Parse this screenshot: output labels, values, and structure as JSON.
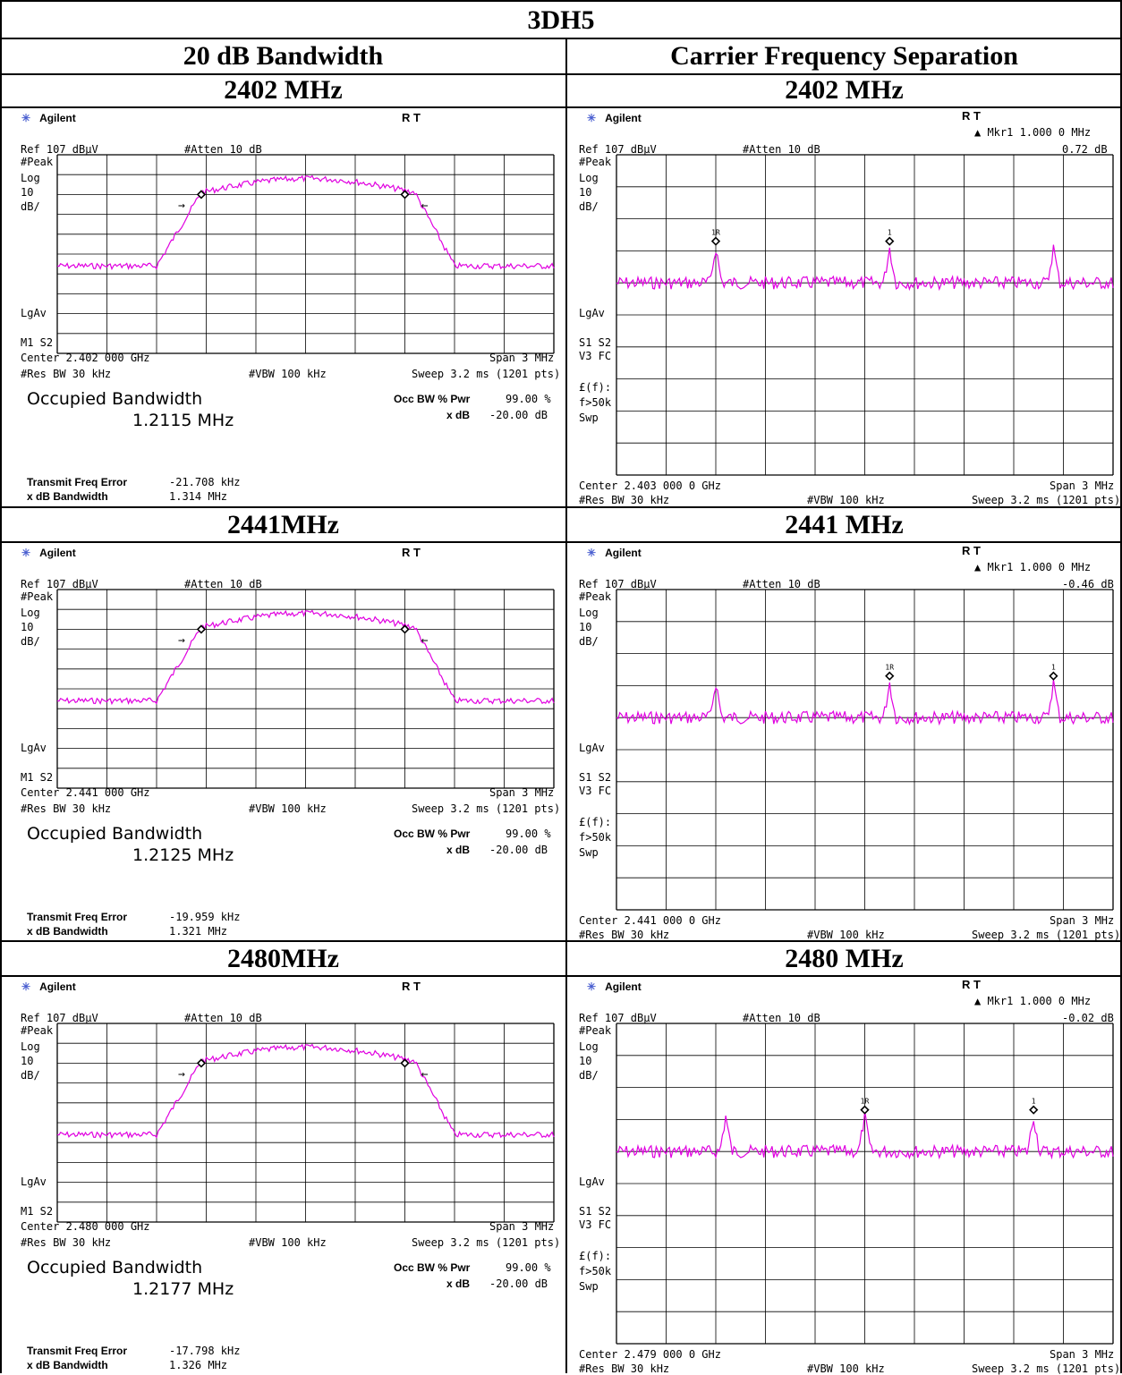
{
  "table": {
    "title": "3DH5",
    "col_left": "20 dB Bandwidth",
    "col_right": "Carrier Frequency Separation",
    "rows": [
      {
        "left_label": "2402 MHz",
        "right_label": "2402 MHz"
      },
      {
        "left_label": "2441MHz",
        "right_label": "2441 MHz"
      },
      {
        "left_label": "2480MHz",
        "right_label": "2480 MHz"
      }
    ]
  },
  "common": {
    "brand": "Agilent",
    "rt": "R  T",
    "ref": "Ref 107 dBµV",
    "atten": "#Atten 10 dB",
    "peak": "#Peak",
    "log": "Log",
    "ten": "10",
    "dbdiv": "dB/",
    "lgav": "LgAv",
    "m1s2": "M1  S2",
    "s1s2": "S1  S2",
    "v3fc": "V3 FC",
    "ef": "£(f):",
    "f50k": "f>50k",
    "swp": "Swp",
    "span": "Span 3 MHz",
    "resbw": "#Res BW 30 kHz",
    "vbw": "#VBW 100 kHz",
    "sweep": "Sweep 3.2 ms (1201 pts)",
    "occ_title": "Occupied Bandwidth",
    "occ_pwr_label": "Occ BW % Pwr",
    "occ_pwr_val": "99.00 %",
    "xdb_label": "x dB",
    "xdb_val": "-20.00 dB",
    "tfe_label": "Transmit Freq Error",
    "xbw_label": "x dB Bandwidth",
    "mkr_label": "▲ Mkr1  1.000 0 MHz",
    "marker_1r": "1R",
    "marker_1": "1"
  },
  "left_panels": [
    {
      "center": "Center 2.402 000 GHz",
      "occ_value": "1.2115 MHz",
      "tfe": "-21.708 kHz",
      "xbw": "1.314 MHz"
    },
    {
      "center": "Center 2.441 000 GHz",
      "occ_value": "1.2125 MHz",
      "tfe": "-19.959 kHz",
      "xbw": "1.321 MHz"
    },
    {
      "center": "Center 2.480 000 GHz",
      "occ_value": "1.2177 MHz",
      "tfe": "-17.798 kHz",
      "xbw": "1.326 MHz"
    }
  ],
  "right_panels": [
    {
      "center": "Center 2.403 000 0 GHz",
      "mkr_db": "0.72 dB"
    },
    {
      "center": "Center 2.441 000 0 GHz",
      "mkr_db": "-0.46 dB"
    },
    {
      "center": "Center 2.479 000 0 GHz",
      "mkr_db": "-0.02 dB"
    }
  ],
  "colors": {
    "trace": "#e000e0",
    "grid": "#000000",
    "logo": "#4a5fd0"
  }
}
